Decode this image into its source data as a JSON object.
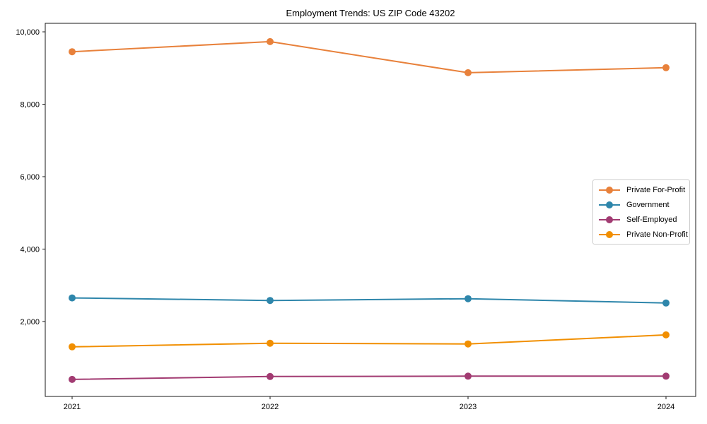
{
  "chart_data": {
    "type": "line",
    "title": "Employment Trends: US ZIP Code 43202",
    "x": [
      2021,
      2022,
      2023,
      2024
    ],
    "x_tick_labels": [
      "2021",
      "2022",
      "2023",
      "2024"
    ],
    "y_ticks": [
      2000,
      4000,
      6000,
      8000,
      10000
    ],
    "y_tick_labels": [
      "2,000",
      "4,000",
      "6,000",
      "8,000",
      "10,000"
    ],
    "ylim": [
      -70,
      10235
    ],
    "grid": false,
    "legend_position": "center right",
    "marker": "circle",
    "axis_color": "#1a1a1a",
    "background_color": "#ffffff",
    "series": [
      {
        "name": "Private For-Profit",
        "color": "#E8813B",
        "values": [
          9450,
          9730,
          8870,
          9010
        ]
      },
      {
        "name": "Government",
        "color": "#2E86AB",
        "values": [
          2650,
          2580,
          2630,
          2510
        ]
      },
      {
        "name": "Self-Employed",
        "color": "#A23B72",
        "values": [
          400,
          480,
          490,
          490
        ]
      },
      {
        "name": "Private Non-Profit",
        "color": "#F18F01",
        "values": [
          1300,
          1400,
          1380,
          1630
        ]
      }
    ]
  }
}
